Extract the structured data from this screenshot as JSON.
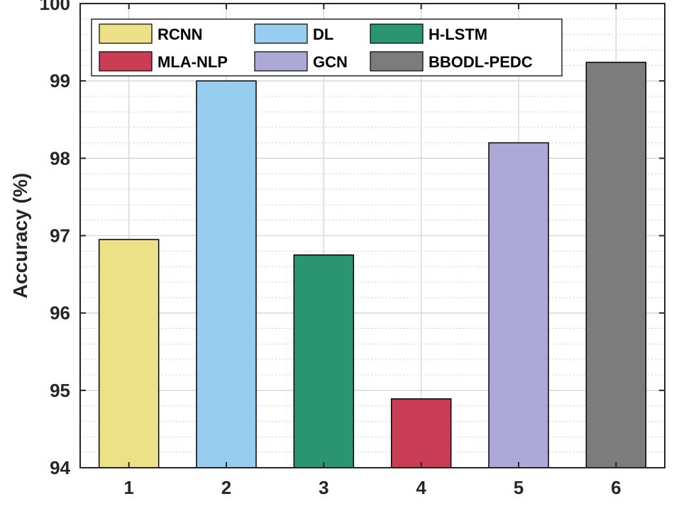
{
  "chart_data": {
    "type": "bar",
    "categories": [
      "1",
      "2",
      "3",
      "4",
      "5",
      "6"
    ],
    "series": [
      {
        "name": "RCNN",
        "color": "#EDE187",
        "values": [
          96.95,
          null,
          null,
          null,
          null,
          null
        ]
      },
      {
        "name": "DL",
        "color": "#97CDEE",
        "values": [
          null,
          99.0,
          null,
          null,
          null,
          null
        ]
      },
      {
        "name": "H-LSTM",
        "color": "#2A9570",
        "values": [
          null,
          null,
          96.75,
          null,
          null,
          null
        ]
      },
      {
        "name": "MLA-NLP",
        "color": "#CB3D55",
        "values": [
          null,
          null,
          null,
          94.89,
          null,
          null
        ]
      },
      {
        "name": "GCN",
        "color": "#ADA9D7",
        "values": [
          null,
          null,
          null,
          null,
          98.2,
          null
        ]
      },
      {
        "name": "BBODL-PEDC",
        "color": "#7C7C7C",
        "values": [
          null,
          null,
          null,
          null,
          null,
          99.24
        ]
      }
    ],
    "ylabel": "Accuracy (%)",
    "xlabel": "",
    "ylim": [
      94,
      100
    ],
    "yticks": [
      "94",
      "95",
      "96",
      "97",
      "98",
      "99",
      "100"
    ],
    "grid": true,
    "minor_grid": true,
    "legend_position": "top-left"
  }
}
